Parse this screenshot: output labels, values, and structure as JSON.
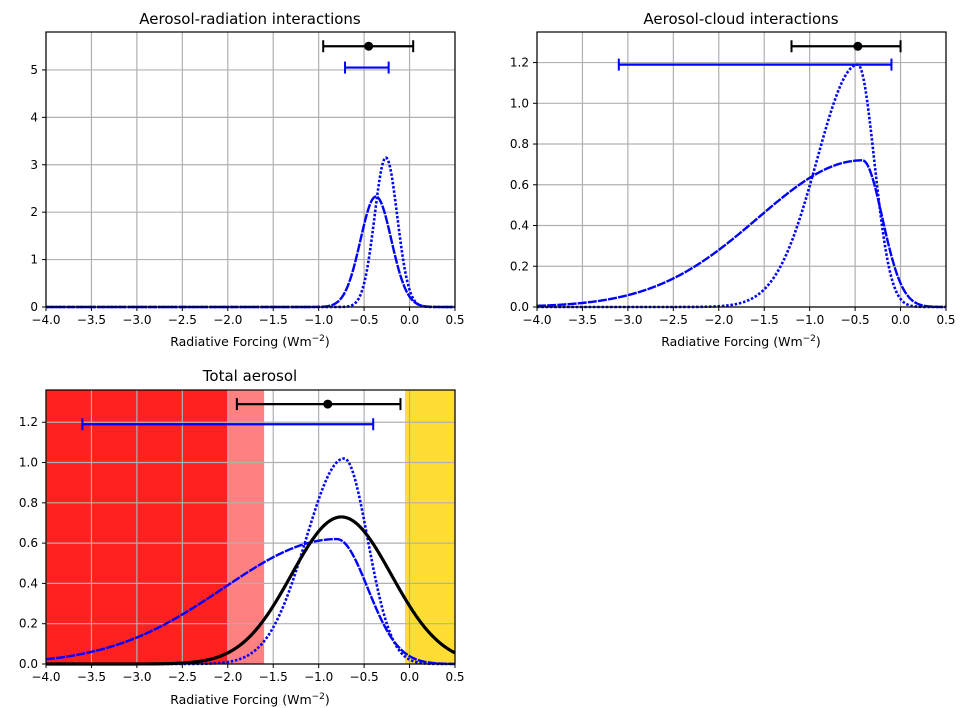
{
  "chart_data": [
    {
      "type": "line",
      "title": "Aerosol-radiation interactions",
      "xlabel": "Radiative Forcing (Wm",
      "xlabel_sup": "−2",
      "xlabel_close": ")",
      "xlim": [
        -4.0,
        0.5
      ],
      "ylim": [
        0,
        5.8
      ],
      "xticks": [
        -4.0,
        -3.5,
        -3.0,
        -2.5,
        -2.0,
        -1.5,
        -1.0,
        -0.5,
        0.0,
        0.5
      ],
      "yticks": [
        0,
        1,
        2,
        3,
        4,
        5
      ],
      "xtick_labels": [
        "−4.0",
        "−3.5",
        "−3.0",
        "−2.5",
        "−2.0",
        "−1.5",
        "−1.0",
        "−0.5",
        "0.0",
        "0.5"
      ],
      "ytick_labels": [
        "0",
        "1",
        "2",
        "3",
        "4",
        "5"
      ],
      "grid": true,
      "series": [
        {
          "style": "solid",
          "color": "#0000ff",
          "shape": "normal",
          "mean": -0.37,
          "sd": 0.17,
          "peak": 2.33
        },
        {
          "style": "dotted",
          "color": "#0000ff",
          "shape": "normal",
          "mean": -0.26,
          "sd": 0.125,
          "peak": 3.15
        }
      ],
      "errorbars": [
        {
          "color": "#000000",
          "y": 5.5,
          "low": -0.95,
          "high": 0.04,
          "center": -0.45
        },
        {
          "color": "#0000ff",
          "y": 5.05,
          "low": -0.71,
          "high": -0.23,
          "center": null
        }
      ]
    },
    {
      "type": "line",
      "title": "Aerosol-cloud interactions",
      "xlabel": "Radiative Forcing (Wm",
      "xlabel_sup": "−2",
      "xlabel_close": ")",
      "xlim": [
        -4.0,
        0.5
      ],
      "ylim": [
        0,
        1.35
      ],
      "xticks": [
        -4.0,
        -3.5,
        -3.0,
        -2.5,
        -2.0,
        -1.5,
        -1.0,
        -0.5,
        0.0,
        0.5
      ],
      "yticks": [
        0.0,
        0.2,
        0.4,
        0.6,
        0.8,
        1.0,
        1.2
      ],
      "xtick_labels": [
        "−4.0",
        "−3.5",
        "−3.0",
        "−2.5",
        "−2.0",
        "−1.5",
        "−1.0",
        "−0.5",
        "0.0",
        "0.5"
      ],
      "ytick_labels": [
        "0.0",
        "0.2",
        "0.4",
        "0.6",
        "0.8",
        "1.0",
        "1.2"
      ],
      "grid": true,
      "series": [
        {
          "style": "solid",
          "color": "#0000ff",
          "shape": "skew",
          "mode": -0.42,
          "sd_left": 1.15,
          "sd_right": 0.22,
          "peak": 0.72
        },
        {
          "style": "dotted",
          "color": "#0000ff",
          "shape": "skew",
          "mode": -0.47,
          "sd_left": 0.45,
          "sd_right": 0.18,
          "peak": 1.19
        }
      ],
      "errorbars": [
        {
          "color": "#000000",
          "y": 1.28,
          "low": -1.2,
          "high": 0.0,
          "center": -0.47
        },
        {
          "color": "#0000ff",
          "y": 1.19,
          "low": -3.1,
          "high": -0.1,
          "center": null
        }
      ]
    },
    {
      "type": "line",
      "title": "Total aerosol",
      "xlabel": "Radiative Forcing (Wm",
      "xlabel_sup": "−2",
      "xlabel_close": ")",
      "xlim": [
        -4.0,
        0.5
      ],
      "ylim": [
        0,
        1.36
      ],
      "xticks": [
        -4.0,
        -3.5,
        -3.0,
        -2.5,
        -2.0,
        -1.5,
        -1.0,
        -0.5,
        0.0,
        0.5
      ],
      "yticks": [
        0.0,
        0.2,
        0.4,
        0.6,
        0.8,
        1.0,
        1.2
      ],
      "xtick_labels": [
        "−4.0",
        "−3.5",
        "−3.0",
        "−2.5",
        "−2.0",
        "−1.5",
        "−1.0",
        "−0.5",
        "0.0",
        "0.5"
      ],
      "ytick_labels": [
        "0.0",
        "0.2",
        "0.4",
        "0.6",
        "0.8",
        "1.0",
        "1.2"
      ],
      "grid": true,
      "bands": [
        {
          "from": -4.0,
          "to": -2.0,
          "color": "#ff2020"
        },
        {
          "from": -2.0,
          "to": -1.6,
          "color": "#ff8080"
        },
        {
          "from": -0.05,
          "to": 0.5,
          "color": "#ffdd33"
        }
      ],
      "series": [
        {
          "style": "solid",
          "color": "#0000ff",
          "shape": "skew",
          "mode": -0.8,
          "sd_left": 1.25,
          "sd_right": 0.34,
          "peak": 0.62
        },
        {
          "style": "dotted",
          "color": "#0000ff",
          "shape": "skew",
          "mode": -0.72,
          "sd_left": 0.42,
          "sd_right": 0.26,
          "peak": 1.02
        },
        {
          "style": "solid-thick",
          "color": "#000000",
          "shape": "normal",
          "mean": -0.75,
          "sd": 0.55,
          "peak": 0.73
        }
      ],
      "errorbars": [
        {
          "color": "#000000",
          "y": 1.29,
          "low": -1.9,
          "high": -0.1,
          "center": -0.9
        },
        {
          "color": "#0000ff",
          "y": 1.19,
          "low": -3.6,
          "high": -0.4,
          "center": null
        }
      ]
    }
  ]
}
